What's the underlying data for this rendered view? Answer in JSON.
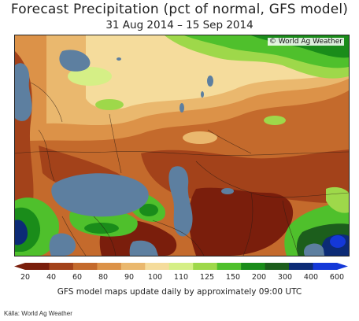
{
  "header": {
    "title": "Forecast Precipitation (pct of normal, GFS model)",
    "dates": "31 Aug 2014 – 15 Sep 2014"
  },
  "map": {
    "credit": "© World Ag Weather"
  },
  "legend": {
    "ticks": [
      "20",
      "40",
      "60",
      "80",
      "90",
      "100",
      "110",
      "125",
      "150",
      "200",
      "300",
      "400",
      "600"
    ],
    "colors": [
      "#7a1e0c",
      "#a3421a",
      "#c46a2c",
      "#dc9248",
      "#eab86e",
      "#f5dc9c",
      "#d5ef86",
      "#9ed84a",
      "#4fc02c",
      "#1a8c1a",
      "#1c5e1c",
      "#0c2b76",
      "#1438d8"
    ]
  },
  "footer": {
    "note": "GFS model maps update daily by approximately 09:00 UTC",
    "source": "Källa: World Ag Weather"
  }
}
